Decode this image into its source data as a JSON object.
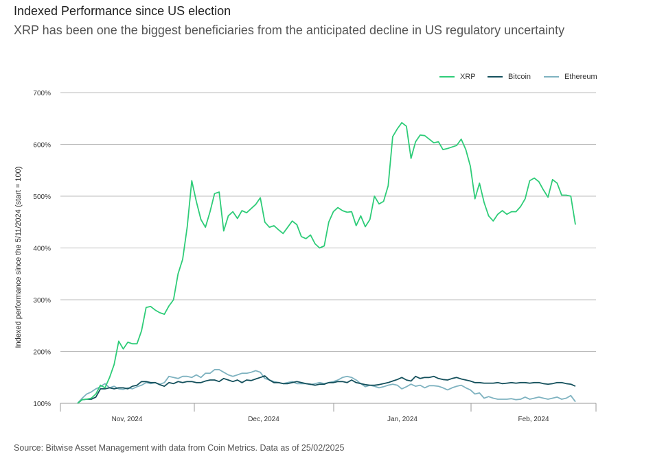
{
  "title": "Indexed Performance since US election",
  "subtitle": "XRP has been one the biggest beneficiaries from the anticipated decline in US regulatory uncertainty",
  "source": "Source: Bitwise Asset Management with data from Coin Metrics. Data as of 25/02/2025",
  "chart_data": {
    "type": "line",
    "title": "Indexed Performance since US election",
    "xlabel": "",
    "ylabel": "Indexed performance since the 5/11/2024 (start = 100)",
    "ylim": [
      100,
      700
    ],
    "yticks": [
      "100%",
      "200%",
      "300%",
      "400%",
      "500%",
      "600%",
      "700%"
    ],
    "ytick_values": [
      100,
      200,
      300,
      400,
      500,
      600,
      700
    ],
    "xticks": [
      "Nov, 2024",
      "Dec, 2024",
      "Jan, 2024",
      "Feb, 2024"
    ],
    "xtick_positions": [
      3,
      27,
      53,
      79
    ],
    "grid": "horizontal",
    "legend": "top-right",
    "series": [
      {
        "name": "XRP",
        "color": "#2ecc78",
        "values": [
          100,
          107,
          108,
          110,
          118,
          135,
          130,
          150,
          175,
          220,
          205,
          218,
          215,
          215,
          240,
          285,
          287,
          280,
          275,
          272,
          288,
          300,
          350,
          378,
          440,
          530,
          490,
          455,
          440,
          470,
          505,
          508,
          433,
          462,
          470,
          457,
          472,
          468,
          476,
          484,
          497,
          450,
          440,
          443,
          435,
          428,
          440,
          452,
          445,
          422,
          418,
          425,
          408,
          400,
          404,
          450,
          470,
          478,
          472,
          469,
          470,
          443,
          462,
          441,
          455,
          500,
          485,
          490,
          520,
          615,
          630,
          642,
          635,
          573,
          605,
          618,
          617,
          610,
          603,
          605,
          590,
          592,
          595,
          598,
          610,
          590,
          558,
          495,
          525,
          488,
          462,
          452,
          465,
          472,
          465,
          470,
          470,
          480,
          495,
          530,
          535,
          528,
          512,
          498,
          532,
          525,
          502,
          502,
          500,
          445
        ]
      },
      {
        "name": "Bitcoin",
        "color": "#14505c",
        "values": [
          100,
          107,
          108,
          108,
          112,
          128,
          128,
          130,
          128,
          130,
          130,
          128,
          133,
          135,
          142,
          142,
          140,
          140,
          136,
          133,
          140,
          138,
          142,
          140,
          142,
          142,
          140,
          140,
          143,
          145,
          145,
          142,
          148,
          145,
          142,
          145,
          140,
          145,
          144,
          147,
          150,
          153,
          145,
          140,
          140,
          138,
          138,
          140,
          142,
          140,
          138,
          137,
          135,
          137,
          137,
          140,
          140,
          142,
          142,
          140,
          145,
          140,
          138,
          136,
          135,
          135,
          136,
          138,
          140,
          143,
          146,
          150,
          145,
          143,
          152,
          148,
          150,
          150,
          152,
          148,
          146,
          145,
          148,
          150,
          147,
          145,
          143,
          140,
          140,
          139,
          139,
          139,
          140,
          138,
          139,
          140,
          139,
          140,
          140,
          139,
          140,
          140,
          138,
          137,
          138,
          140,
          140,
          138,
          137,
          133
        ]
      },
      {
        "name": "Ethereum",
        "color": "#7eb2c0",
        "values": [
          100,
          110,
          118,
          122,
          128,
          132,
          138,
          130,
          133,
          128,
          127,
          130,
          128,
          132,
          135,
          140,
          138,
          140,
          137,
          140,
          152,
          150,
          148,
          152,
          152,
          150,
          155,
          150,
          158,
          158,
          165,
          165,
          160,
          155,
          152,
          155,
          158,
          158,
          160,
          163,
          160,
          148,
          145,
          142,
          140,
          138,
          140,
          142,
          138,
          138,
          138,
          136,
          138,
          140,
          138,
          140,
          142,
          145,
          150,
          152,
          150,
          145,
          138,
          132,
          135,
          133,
          130,
          132,
          135,
          137,
          135,
          128,
          132,
          137,
          133,
          135,
          130,
          134,
          134,
          133,
          130,
          126,
          130,
          133,
          135,
          130,
          126,
          118,
          120,
          110,
          113,
          110,
          108,
          108,
          108,
          109,
          107,
          108,
          112,
          108,
          110,
          112,
          110,
          108,
          110,
          112,
          108,
          110,
          115,
          103
        ]
      }
    ]
  }
}
